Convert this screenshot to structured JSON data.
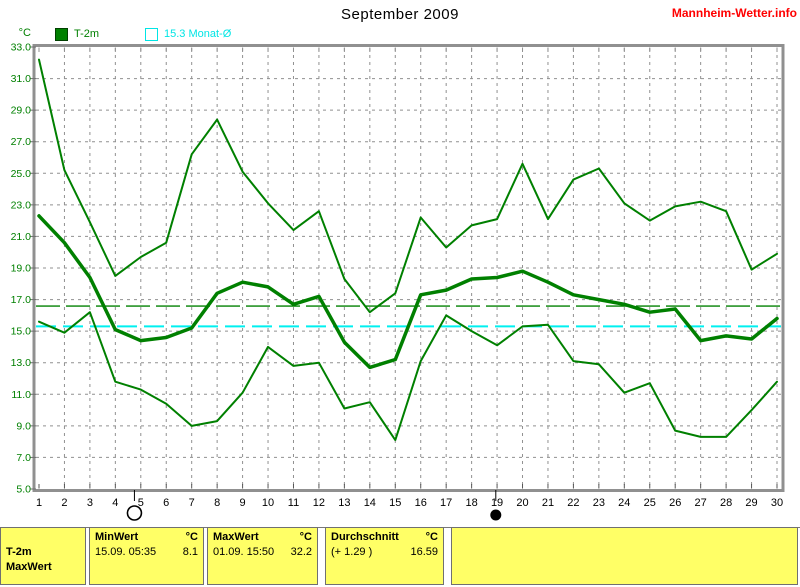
{
  "title": "September 2009",
  "watermark": "Mannheim-Wetter.info",
  "axis_unit": "°C",
  "legend": [
    {
      "label": "T-2m",
      "color": "#008000",
      "swatch": "filled-square"
    },
    {
      "label": "15.3 Monat-Ø",
      "color": "#00ffff",
      "swatch": "outline-square"
    }
  ],
  "chart_data": {
    "type": "line",
    "title": "September 2009",
    "ylabel": "°C",
    "xlabel": "",
    "ylim": [
      5,
      33
    ],
    "ytick_step": 2,
    "grid": true,
    "legend_position": "top",
    "x": [
      1,
      2,
      3,
      4,
      5,
      6,
      7,
      8,
      9,
      10,
      11,
      12,
      13,
      14,
      15,
      16,
      17,
      18,
      19,
      20,
      21,
      22,
      23,
      24,
      25,
      26,
      27,
      28,
      29,
      30
    ],
    "x_tick_labels": [
      "1",
      "2",
      "3",
      "4",
      "5",
      "6",
      "7",
      "8",
      "9",
      "10",
      "11",
      "12",
      "13",
      "14",
      "15",
      "16",
      "17",
      "18",
      "19",
      "20",
      "21",
      "22",
      "23",
      "24",
      "25",
      "26",
      "27",
      "28",
      "29",
      "30"
    ],
    "y_tick_labels": [
      "33.0",
      "31.0",
      "29.0",
      "27.0",
      "25.0",
      "23.0",
      "21.0",
      "19.0",
      "17.0",
      "15.0",
      "13.0",
      "11.0",
      "9.0",
      "7.0",
      "5.0"
    ],
    "series": [
      {
        "name": "T-2m daily maximum",
        "color": "#008000",
        "width": 2,
        "values": [
          32.2,
          25.2,
          21.9,
          18.5,
          19.7,
          20.6,
          26.2,
          28.4,
          25.1,
          23.1,
          21.4,
          22.6,
          18.3,
          16.2,
          17.4,
          22.2,
          20.3,
          21.7,
          22.1,
          25.6,
          22.1,
          24.6,
          25.3,
          23.1,
          22.0,
          22.9,
          23.2,
          22.6,
          18.9,
          19.9
        ]
      },
      {
        "name": "T-2m daily mean",
        "color": "#008000",
        "width": 3.5,
        "values": [
          22.3,
          20.6,
          18.4,
          15.1,
          14.4,
          14.6,
          15.2,
          17.4,
          18.1,
          17.8,
          16.7,
          17.2,
          14.3,
          12.7,
          13.2,
          17.3,
          17.6,
          18.3,
          18.4,
          18.8,
          18.1,
          17.3,
          17.0,
          16.7,
          16.2,
          16.4,
          14.4,
          14.7,
          14.5,
          15.8
        ]
      },
      {
        "name": "T-2m daily minimum",
        "color": "#008000",
        "width": 2,
        "values": [
          15.6,
          14.9,
          16.2,
          11.8,
          11.3,
          10.4,
          9.0,
          9.3,
          11.1,
          14.0,
          12.8,
          13.0,
          10.1,
          10.5,
          8.1,
          13.1,
          16.0,
          15.0,
          14.1,
          15.3,
          15.4,
          13.1,
          12.9,
          11.1,
          11.7,
          8.7,
          8.3,
          8.3,
          10.0,
          11.8
        ]
      }
    ],
    "reference_lines": [
      {
        "name": "month-longterm-average",
        "label": "15.3 Monat-Ø",
        "value": 15.3,
        "color": "#00f0f0",
        "width": 2,
        "dash": "20,7"
      },
      {
        "name": "month-durchschnitt",
        "label": "16.59",
        "value": 16.59,
        "color": "#008000",
        "width": 1.4,
        "dash": "24,6"
      }
    ],
    "moon_markers": [
      {
        "shape": "open-circle",
        "day": 4.75
      },
      {
        "shape": "filled-circle",
        "day": 18.95
      }
    ]
  },
  "table": {
    "row_label": "T-2m",
    "clipped_second_row_label": "MaxWert",
    "columns": [
      {
        "header": "MinWert",
        "unit": "°C",
        "when": "15.09. 05:35",
        "value": "8.1"
      },
      {
        "header": "MaxWert",
        "unit": "°C",
        "when": "01.09. 15:50",
        "value": "32.2"
      },
      {
        "header": "Durchschnitt",
        "unit": "°C",
        "when": "(+ 1.29 )",
        "value": "16.59"
      }
    ]
  },
  "colors": {
    "line": "#008000",
    "cyan": "#00f0f0",
    "frame": "#909090",
    "grid": "#909090",
    "table_bg": "#ffff66",
    "watermark": "#ff0000",
    "x_label": "#000000",
    "y_label": "#008000"
  }
}
